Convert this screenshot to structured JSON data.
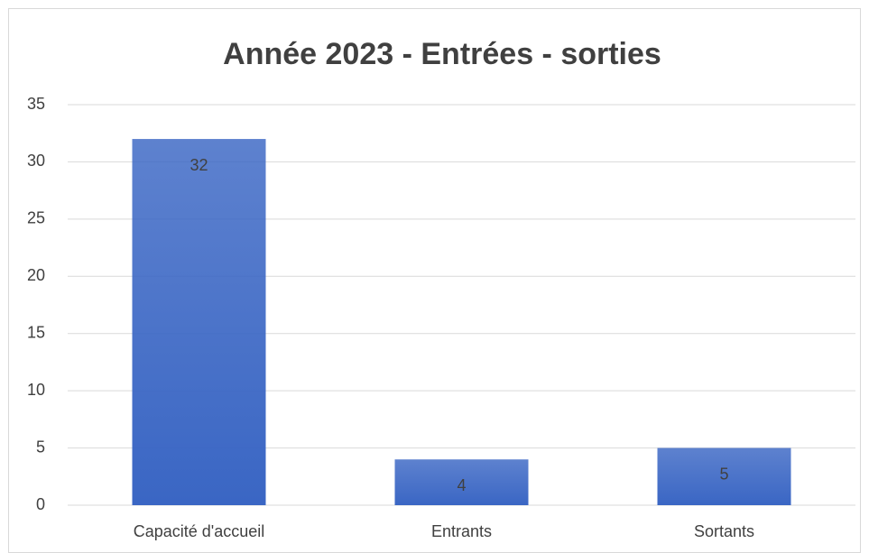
{
  "chart_data": {
    "type": "bar",
    "title": "Année 2023 - Entrées - sorties",
    "categories": [
      "Capacité d'accueil",
      "Entrants",
      "Sortants"
    ],
    "values": [
      32,
      4,
      5
    ],
    "color": "#3a66c4",
    "ylim": [
      0,
      35
    ],
    "yticks": [
      0,
      5,
      10,
      15,
      20,
      25,
      30,
      35
    ],
    "grid": true
  }
}
